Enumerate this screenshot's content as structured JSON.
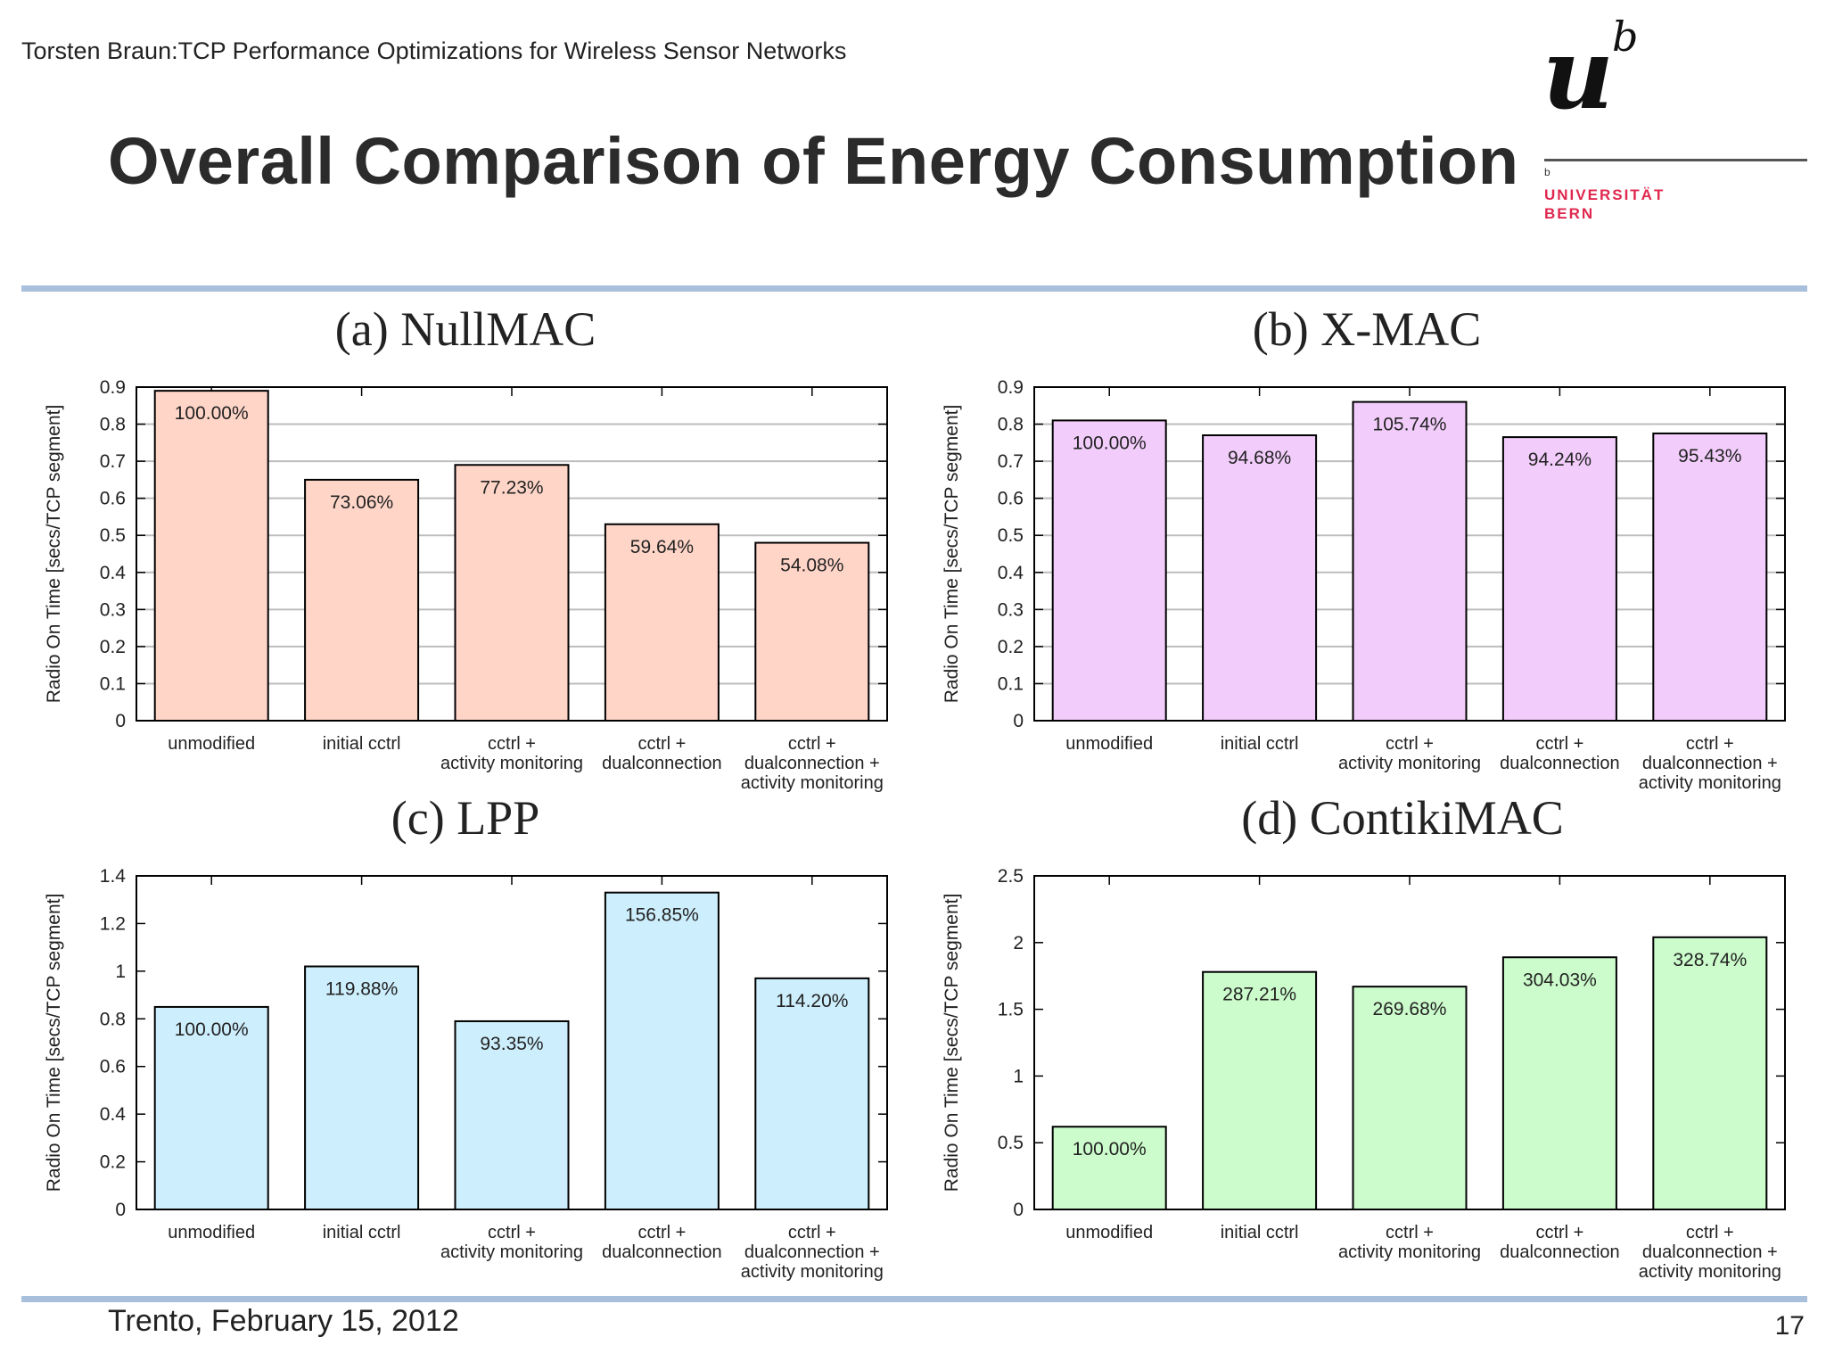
{
  "header": {
    "subtitle": "Torsten Braun:TCP Performance Optimizations for Wireless Sensor Networks",
    "title": "Overall Comparison of Energy Consumption"
  },
  "logo": {
    "mark": "u",
    "superscript": "b",
    "small_b": "b",
    "text": "UNIVERSITÄT\nBERN",
    "color": "#e0284f"
  },
  "footer": {
    "location_date": "Trento, February 15, 2012",
    "page_number": "17"
  },
  "chart_data": [
    {
      "type": "bar",
      "title": "(a) NullMAC",
      "ylabel": "Radio On Time [secs/TCP segment]",
      "ylim": [
        0,
        0.9
      ],
      "yticks": [
        "0",
        "0.1",
        "0.2",
        "0.3",
        "0.4",
        "0.5",
        "0.6",
        "0.7",
        "0.8",
        "0.9"
      ],
      "categories": [
        [
          "unmodified"
        ],
        [
          "initial cctrl"
        ],
        [
          "cctrl +",
          "activity monitoring"
        ],
        [
          "cctrl +",
          "dualconnection"
        ],
        [
          "cctrl +",
          "dualconnection +",
          "activity monitoring"
        ]
      ],
      "values": [
        0.89,
        0.65,
        0.69,
        0.53,
        0.48
      ],
      "labels": [
        "100.00%",
        "73.06%",
        "77.23%",
        "59.64%",
        "54.08%"
      ],
      "color": "#ffd5c8",
      "grid": true
    },
    {
      "type": "bar",
      "title": "(b) X-MAC",
      "ylabel": "Radio On Time [secs/TCP segment]",
      "ylim": [
        0,
        0.9
      ],
      "yticks": [
        "0",
        "0.1",
        "0.2",
        "0.3",
        "0.4",
        "0.5",
        "0.6",
        "0.7",
        "0.8",
        "0.9"
      ],
      "categories": [
        [
          "unmodified"
        ],
        [
          "initial cctrl"
        ],
        [
          "cctrl +",
          "activity monitoring"
        ],
        [
          "cctrl +",
          "dualconnection"
        ],
        [
          "cctrl +",
          "dualconnection +",
          "activity monitoring"
        ]
      ],
      "values": [
        0.81,
        0.77,
        0.86,
        0.765,
        0.775
      ],
      "labels": [
        "100.00%",
        "94.68%",
        "105.74%",
        "94.24%",
        "95.43%"
      ],
      "color": "#f2cdfb",
      "grid": true
    },
    {
      "type": "bar",
      "title": "(c) LPP",
      "ylabel": "Radio On Time [secs/TCP segment]",
      "ylim": [
        0,
        1.4
      ],
      "yticks": [
        "0",
        "0.2",
        "0.4",
        "0.6",
        "0.8",
        "1",
        "1.2",
        "1.4"
      ],
      "categories": [
        [
          "unmodified"
        ],
        [
          "initial cctrl"
        ],
        [
          "cctrl +",
          "activity monitoring"
        ],
        [
          "cctrl +",
          "dualconnection"
        ],
        [
          "cctrl +",
          "dualconnection +",
          "activity monitoring"
        ]
      ],
      "values": [
        0.85,
        1.02,
        0.79,
        1.33,
        0.97
      ],
      "labels": [
        "100.00%",
        "119.88%",
        "93.35%",
        "156.85%",
        "114.20%"
      ],
      "color": "#cdeefc",
      "grid": false
    },
    {
      "type": "bar",
      "title": "(d) ContikiMAC",
      "ylabel": "Radio On Time [secs/TCP segment]",
      "ylim": [
        0,
        2.5
      ],
      "yticks": [
        "0",
        "0.5",
        "1",
        "1.5",
        "2",
        "2.5"
      ],
      "categories": [
        [
          "unmodified"
        ],
        [
          "initial cctrl"
        ],
        [
          "cctrl +",
          "activity monitoring"
        ],
        [
          "cctrl +",
          "dualconnection"
        ],
        [
          "cctrl +",
          "dualconnection +",
          "activity monitoring"
        ]
      ],
      "values": [
        0.62,
        1.78,
        1.67,
        1.89,
        2.04
      ],
      "labels": [
        "100.00%",
        "287.21%",
        "269.68%",
        "304.03%",
        "328.74%"
      ],
      "color": "#ccfccc",
      "grid": false
    }
  ]
}
